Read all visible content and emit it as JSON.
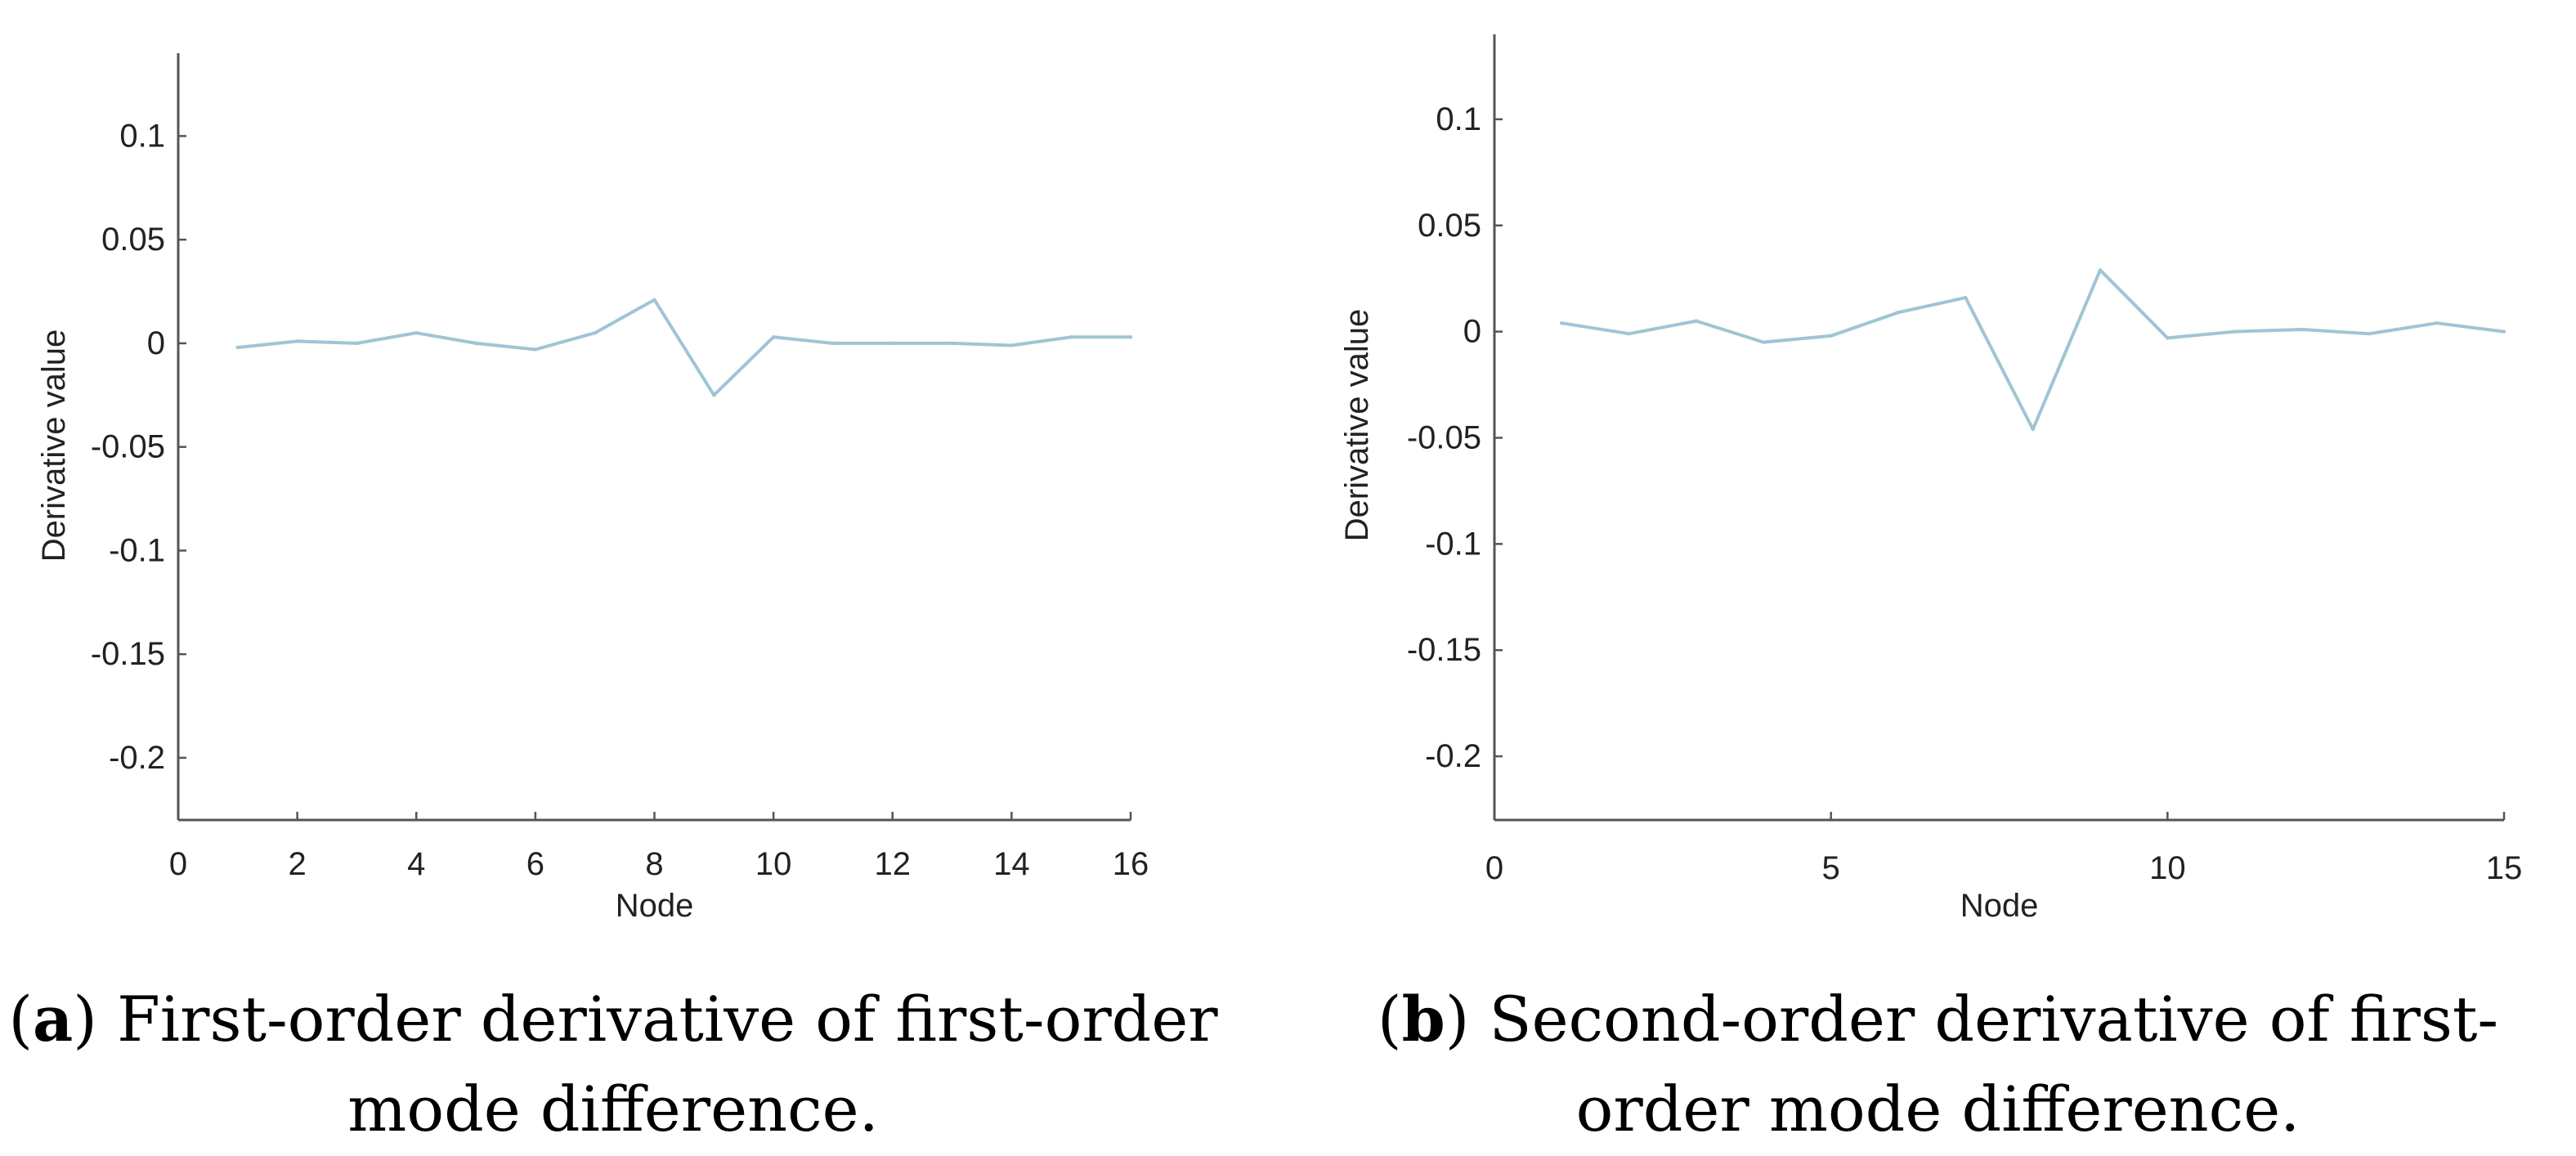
{
  "colors": {
    "line": "#9fc5d4",
    "axis": "#555555",
    "text": "#222222"
  },
  "charts": [
    {
      "caption": {
        "paren_open": "(",
        "letter": "a",
        "rest": ") First-order derivative of first-order mode difference."
      },
      "chart_data": {
        "type": "line",
        "xlabel": "Node",
        "ylabel": "Derivative value",
        "xlim": [
          0,
          16
        ],
        "ylim": [
          -0.23,
          0.14
        ],
        "xticks": [
          0,
          2,
          4,
          6,
          8,
          10,
          12,
          14,
          16
        ],
        "xtick_labels": [
          "0",
          "2",
          "4",
          "6",
          "8",
          "10",
          "12",
          "14",
          "16"
        ],
        "yticks": [
          0.1,
          0.05,
          0,
          -0.05,
          -0.1,
          -0.15,
          -0.2
        ],
        "ytick_labels": [
          "0.1",
          "0.05",
          "0",
          "-0.05",
          "-0.1",
          "-0.15",
          "-0.2"
        ],
        "grid": false,
        "series": [
          {
            "x": [
              1,
              2,
              3,
              4,
              5,
              6,
              7,
              8,
              9,
              10,
              11,
              12,
              13,
              14,
              15,
              16
            ],
            "y": [
              -0.002,
              0.001,
              0.0,
              0.005,
              0.0,
              -0.003,
              0.005,
              0.021,
              -0.025,
              0.003,
              0.0,
              0.0,
              0.0,
              -0.001,
              0.003,
              0.003
            ]
          }
        ]
      }
    },
    {
      "caption": {
        "paren_open": "(",
        "letter": "b",
        "rest": ") Second-order derivative of first-order mode difference."
      },
      "chart_data": {
        "type": "line",
        "xlabel": "Node",
        "ylabel": "Derivative value",
        "xlim": [
          0,
          15
        ],
        "ylim": [
          -0.23,
          0.14
        ],
        "xticks": [
          0,
          5,
          10,
          15
        ],
        "xtick_labels": [
          "0",
          "5",
          "10",
          "15"
        ],
        "yticks": [
          0.1,
          0.05,
          0,
          -0.05,
          -0.1,
          -0.15,
          -0.2
        ],
        "ytick_labels": [
          "0.1",
          "0.05",
          "0",
          "-0.05",
          "-0.1",
          "-0.15",
          "-0.2"
        ],
        "grid": false,
        "series": [
          {
            "x": [
              1,
              2,
              3,
              4,
              5,
              6,
              7,
              8,
              9,
              10,
              11,
              12,
              13,
              14,
              15
            ],
            "y": [
              0.004,
              -0.001,
              0.005,
              -0.005,
              -0.002,
              0.009,
              0.016,
              -0.046,
              0.029,
              -0.003,
              0.0,
              0.001,
              -0.001,
              0.004,
              0.0
            ]
          }
        ]
      }
    }
  ]
}
